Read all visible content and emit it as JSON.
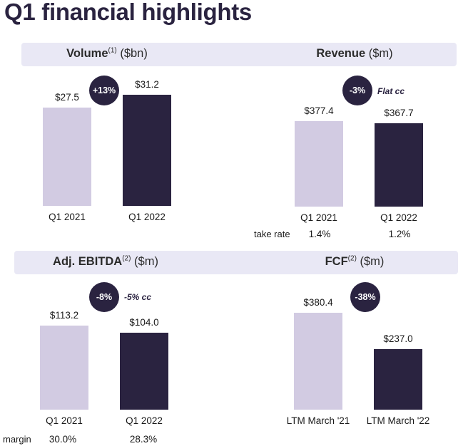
{
  "page": {
    "title": "Q1 financial highlights"
  },
  "colors": {
    "prior_bar": "#d2cbe2",
    "current_bar": "#2a2340",
    "band": "#e9e8f5",
    "badge": "#2a2340"
  },
  "chart_data": [
    {
      "type": "bar",
      "title_main": "Volume",
      "title_sup": "(1)",
      "title_unit": " ($bn)",
      "categories": [
        "Q1 2021",
        "Q1 2022"
      ],
      "values": [
        27.5,
        31.2
      ],
      "value_labels": [
        "$27.5",
        "$31.2"
      ],
      "ylim": [
        0,
        34.0
      ],
      "change_badge": "+13%",
      "note": "",
      "extra_row_label": "",
      "extra_row_values": []
    },
    {
      "type": "bar",
      "title_main": "Revenue",
      "title_sup": "",
      "title_unit": " ($m)",
      "categories": [
        "Q1 2021",
        "Q1 2022"
      ],
      "values": [
        377.4,
        367.7
      ],
      "value_labels": [
        "$377.4",
        "$367.7"
      ],
      "ylim": [
        0,
        445.0
      ],
      "change_badge": "-3%",
      "note": "Flat cc",
      "extra_row_label": "take rate",
      "extra_row_values": [
        "1.4%",
        "1.2%"
      ]
    },
    {
      "type": "bar",
      "title_main": "Adj. EBITDA",
      "title_sup": "(2)",
      "title_unit": " ($m)",
      "categories": [
        "Q1 2021",
        "Q1 2022"
      ],
      "values": [
        113.2,
        104.0
      ],
      "value_labels": [
        "$113.2",
        "$104.0"
      ],
      "ylim": [
        0,
        118.0
      ],
      "change_badge": "-8%",
      "note": "-5% cc",
      "extra_row_label": "margin",
      "extra_row_values": [
        "30.0%",
        "28.3%"
      ]
    },
    {
      "type": "bar",
      "title_main": "FCF",
      "title_sup": "(2)",
      "title_unit": " ($m)",
      "categories": [
        "LTM March '21",
        "LTM March '22"
      ],
      "values": [
        380.4,
        237.0
      ],
      "value_labels": [
        "$380.4",
        "$237.0"
      ],
      "ylim": [
        0,
        410.0
      ],
      "change_badge": "-38%",
      "note": "",
      "extra_row_label": "",
      "extra_row_values": []
    }
  ]
}
